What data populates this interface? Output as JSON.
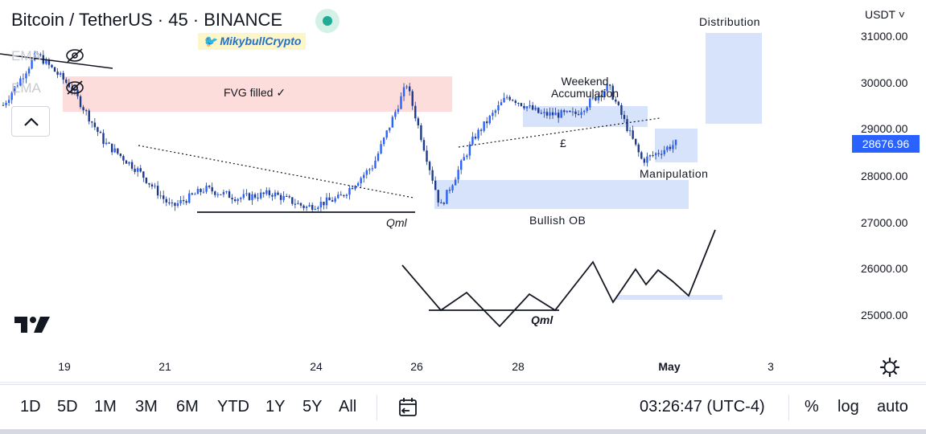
{
  "header": {
    "title": "Bitcoin / TetherUS · 45 · BINANCE",
    "watermark": "🐦 MikybullCrypto",
    "currency": "USDT ˅",
    "indicators": [
      "EMA",
      "EMA"
    ]
  },
  "price_badge": "28676.96",
  "chart_data": {
    "type": "candlestick",
    "ylim": [
      24000,
      31600
    ],
    "y_ticks": [
      "31000.00",
      "30000.00",
      "29000.00",
      "28000.00",
      "27000.00",
      "26000.00",
      "25000.00"
    ],
    "x_ticks": [
      "19",
      "21",
      "24",
      "26",
      "28",
      "May",
      "3"
    ],
    "approx_close_path": [
      {
        "x": "Apr 19",
        "y": 29500
      },
      {
        "x": "Apr 19",
        "y": 30600
      },
      {
        "x": "Apr 20",
        "y": 29900
      },
      {
        "x": "Apr 20",
        "y": 28700
      },
      {
        "x": "Apr 21",
        "y": 28100
      },
      {
        "x": "Apr 21",
        "y": 27300
      },
      {
        "x": "Apr 22",
        "y": 27700
      },
      {
        "x": "Apr 23",
        "y": 27500
      },
      {
        "x": "Apr 24",
        "y": 27600
      },
      {
        "x": "Apr 24",
        "y": 27300
      },
      {
        "x": "Apr 25",
        "y": 27500
      },
      {
        "x": "Apr 25",
        "y": 28200
      },
      {
        "x": "Apr 26",
        "y": 29950
      },
      {
        "x": "Apr 26",
        "y": 27300
      },
      {
        "x": "Apr 27",
        "y": 28800
      },
      {
        "x": "Apr 27",
        "y": 29700
      },
      {
        "x": "Apr 28",
        "y": 29300
      },
      {
        "x": "Apr 29",
        "y": 29300
      },
      {
        "x": "Apr 30",
        "y": 29900
      },
      {
        "x": "Apr 30",
        "y": 28300
      },
      {
        "x": "May 1",
        "y": 28677
      }
    ],
    "last_price": 28676.96
  },
  "annotations": {
    "fvg": "FVG filled ✓",
    "qml_chart": "Qml",
    "qml_sketch": "Qml",
    "weekend": "Weekend\nAccumulation",
    "pound": "£",
    "bullish_ob": "Bullish OB",
    "manipulation": "Manipulation",
    "distribution": "Distribution"
  },
  "time_ranges": [
    "1D",
    "5D",
    "1M",
    "3M",
    "6M",
    "YTD",
    "1Y",
    "5Y",
    "All"
  ],
  "clock": "03:26:47 (UTC-4)",
  "scale_options": [
    "%",
    "log",
    "auto"
  ],
  "colors": {
    "candle": "#2962ff",
    "fvg_zone": "#fddcdc",
    "ob_zone": "#d7e2fb",
    "price_badge": "#2962ff"
  },
  "icons": [
    "eye-off-icon",
    "chevron-up-icon",
    "calendar-compare-icon",
    "gear-icon",
    "tradingview-logo-icon"
  ]
}
